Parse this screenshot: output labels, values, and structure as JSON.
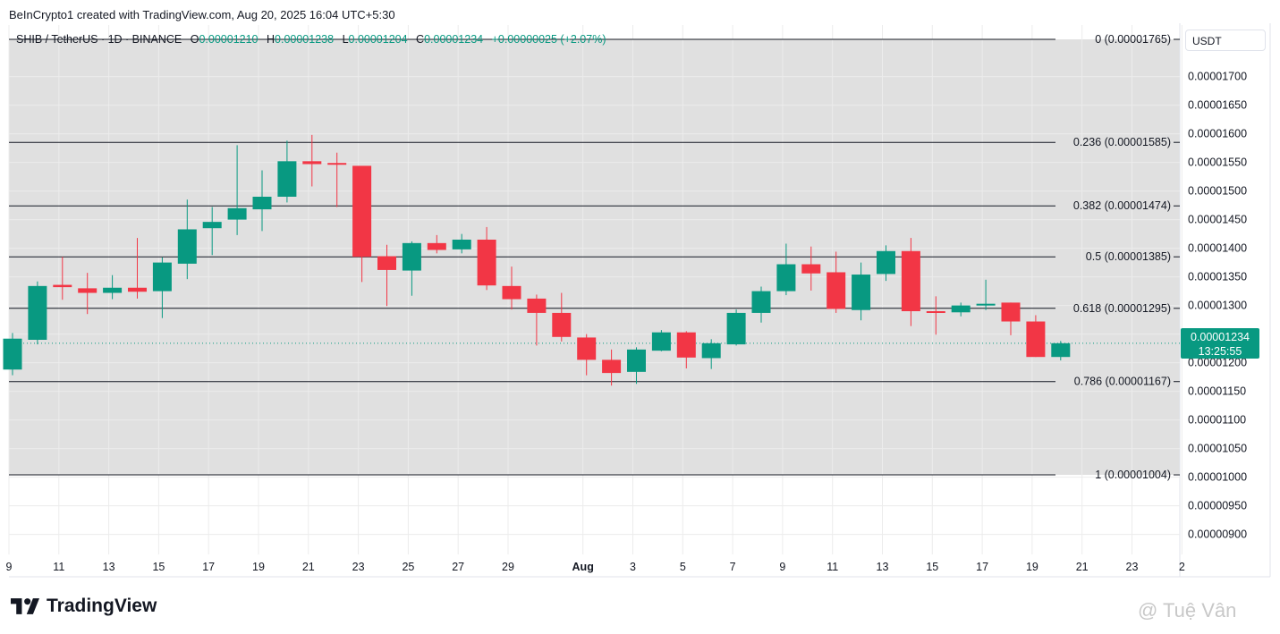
{
  "caption": "BeInCrypto1 created with TradingView.com, Aug 20, 2025 16:04 UTC+5:30",
  "legend": {
    "symbol": "SHIB / TetherUS · 1D · BINANCE",
    "open_label": "O",
    "open": "0.00001210",
    "high_label": "H",
    "high": "0.00001238",
    "low_label": "L",
    "low": "0.00001204",
    "close_label": "C",
    "close": "0.00001234",
    "change": "+0.00000025 (+2.07%)"
  },
  "currency": "USDT",
  "last_price": {
    "price": "0.00001234",
    "countdown": "13:25:55"
  },
  "brand": "TradingView",
  "watermark": "@ Tuệ Vân",
  "colors": {
    "up": "#089981",
    "down": "#f23645",
    "zone": "#e0e0e0",
    "grid": "#ececec"
  },
  "chart_data": {
    "type": "candlestick",
    "ylim": [
      8.65e-06,
      1.79e-05
    ],
    "y_ticks": [
      {
        "value": 1.7e-05,
        "label": "0.00001700"
      },
      {
        "value": 1.65e-05,
        "label": "0.00001650"
      },
      {
        "value": 1.6e-05,
        "label": "0.00001600"
      },
      {
        "value": 1.55e-05,
        "label": "0.00001550"
      },
      {
        "value": 1.5e-05,
        "label": "0.00001500"
      },
      {
        "value": 1.45e-05,
        "label": "0.00001450"
      },
      {
        "value": 1.4e-05,
        "label": "0.00001400"
      },
      {
        "value": 1.35e-05,
        "label": "0.00001350"
      },
      {
        "value": 1.3e-05,
        "label": "0.00001300"
      },
      {
        "value": 1.25e-05,
        "label": "0.00001250"
      },
      {
        "value": 1.2e-05,
        "label": "0.00001200"
      },
      {
        "value": 1.15e-05,
        "label": "0.00001150"
      },
      {
        "value": 1.1e-05,
        "label": "0.00001100"
      },
      {
        "value": 1.05e-05,
        "label": "0.00001050"
      },
      {
        "value": 1e-05,
        "label": "0.00001000"
      },
      {
        "value": 9.5e-06,
        "label": "0.00000950"
      },
      {
        "value": 9e-06,
        "label": "0.00000900"
      }
    ],
    "x_ticks": [
      {
        "index": 0,
        "label": "9"
      },
      {
        "index": 2,
        "label": "11"
      },
      {
        "index": 4,
        "label": "13"
      },
      {
        "index": 6,
        "label": "15"
      },
      {
        "index": 8,
        "label": "17"
      },
      {
        "index": 10,
        "label": "19"
      },
      {
        "index": 12,
        "label": "21"
      },
      {
        "index": 14,
        "label": "23"
      },
      {
        "index": 16,
        "label": "25"
      },
      {
        "index": 18,
        "label": "27"
      },
      {
        "index": 20,
        "label": "29"
      },
      {
        "index": 23,
        "label": "Aug"
      },
      {
        "index": 25,
        "label": "3"
      },
      {
        "index": 27,
        "label": "5"
      },
      {
        "index": 29,
        "label": "7"
      },
      {
        "index": 31,
        "label": "9"
      },
      {
        "index": 33,
        "label": "11"
      },
      {
        "index": 35,
        "label": "13"
      },
      {
        "index": 37,
        "label": "15"
      },
      {
        "index": 39,
        "label": "17"
      },
      {
        "index": 41,
        "label": "19"
      },
      {
        "index": 43,
        "label": "21"
      },
      {
        "index": 45,
        "label": "23"
      },
      {
        "index": 47,
        "label": "2"
      }
    ],
    "fib_levels": [
      {
        "ratio": "0",
        "value": 1.765e-05,
        "label": "0 (0.00001765)"
      },
      {
        "ratio": "0.236",
        "value": 1.585e-05,
        "label": "0.236 (0.00001585)"
      },
      {
        "ratio": "0.382",
        "value": 1.474e-05,
        "label": "0.382 (0.00001474)"
      },
      {
        "ratio": "0.5",
        "value": 1.385e-05,
        "label": "0.5 (0.00001385)"
      },
      {
        "ratio": "0.618",
        "value": 1.295e-05,
        "label": "0.618 (0.00001295)"
      },
      {
        "ratio": "0.786",
        "value": 1.167e-05,
        "label": "0.786 (0.00001167)"
      },
      {
        "ratio": "1",
        "value": 1.004e-05,
        "label": "1 (0.00001004)"
      }
    ],
    "candles": [
      {
        "o": 1.188e-05,
        "h": 1.252e-05,
        "l": 1.178e-05,
        "c": 1.242e-05
      },
      {
        "o": 1.24e-05,
        "h": 1.342e-05,
        "l": 1.232e-05,
        "c": 1.334e-05
      },
      {
        "o": 1.336e-05,
        "h": 1.385e-05,
        "l": 1.31e-05,
        "c": 1.332e-05
      },
      {
        "o": 1.33e-05,
        "h": 1.357e-05,
        "l": 1.285e-05,
        "c": 1.322e-05
      },
      {
        "o": 1.322e-05,
        "h": 1.353e-05,
        "l": 1.311e-05,
        "c": 1.331e-05
      },
      {
        "o": 1.331e-05,
        "h": 1.418e-05,
        "l": 1.312e-05,
        "c": 1.324e-05
      },
      {
        "o": 1.325e-05,
        "h": 1.384e-05,
        "l": 1.278e-05,
        "c": 1.375e-05
      },
      {
        "o": 1.373e-05,
        "h": 1.485e-05,
        "l": 1.346e-05,
        "c": 1.433e-05
      },
      {
        "o": 1.435e-05,
        "h": 1.472e-05,
        "l": 1.388e-05,
        "c": 1.446e-05
      },
      {
        "o": 1.45e-05,
        "h": 1.58e-05,
        "l": 1.423e-05,
        "c": 1.47e-05
      },
      {
        "o": 1.468e-05,
        "h": 1.536e-05,
        "l": 1.43e-05,
        "c": 1.49e-05
      },
      {
        "o": 1.49e-05,
        "h": 1.588e-05,
        "l": 1.48e-05,
        "c": 1.552e-05
      },
      {
        "o": 1.552e-05,
        "h": 1.598e-05,
        "l": 1.508e-05,
        "c": 1.547e-05
      },
      {
        "o": 1.549e-05,
        "h": 1.567e-05,
        "l": 1.472e-05,
        "c": 1.546e-05
      },
      {
        "o": 1.544e-05,
        "h": 1.544e-05,
        "l": 1.341e-05,
        "c": 1.385e-05
      },
      {
        "o": 1.386e-05,
        "h": 1.406e-05,
        "l": 1.299e-05,
        "c": 1.362e-05
      },
      {
        "o": 1.361e-05,
        "h": 1.412e-05,
        "l": 1.317e-05,
        "c": 1.409e-05
      },
      {
        "o": 1.409e-05,
        "h": 1.423e-05,
        "l": 1.391e-05,
        "c": 1.397e-05
      },
      {
        "o": 1.398e-05,
        "h": 1.425e-05,
        "l": 1.391e-05,
        "c": 1.415e-05
      },
      {
        "o": 1.415e-05,
        "h": 1.437e-05,
        "l": 1.327e-05,
        "c": 1.335e-05
      },
      {
        "o": 1.334e-05,
        "h": 1.368e-05,
        "l": 1.293e-05,
        "c": 1.311e-05
      },
      {
        "o": 1.312e-05,
        "h": 1.319e-05,
        "l": 1.23e-05,
        "c": 1.287e-05
      },
      {
        "o": 1.287e-05,
        "h": 1.322e-05,
        "l": 1.237e-05,
        "c": 1.245e-05
      },
      {
        "o": 1.244e-05,
        "h": 1.25e-05,
        "l": 1.178e-05,
        "c": 1.205e-05
      },
      {
        "o": 1.205e-05,
        "h": 1.223e-05,
        "l": 1.16e-05,
        "c": 1.182e-05
      },
      {
        "o": 1.184e-05,
        "h": 1.227e-05,
        "l": 1.163e-05,
        "c": 1.223e-05
      },
      {
        "o": 1.221e-05,
        "h": 1.257e-05,
        "l": 1.22e-05,
        "c": 1.253e-05
      },
      {
        "o": 1.253e-05,
        "h": 1.255e-05,
        "l": 1.19e-05,
        "c": 1.209e-05
      },
      {
        "o": 1.208e-05,
        "h": 1.241e-05,
        "l": 1.189e-05,
        "c": 1.234e-05
      },
      {
        "o": 1.232e-05,
        "h": 1.293e-05,
        "l": 1.23e-05,
        "c": 1.287e-05
      },
      {
        "o": 1.287e-05,
        "h": 1.333e-05,
        "l": 1.27e-05,
        "c": 1.325e-05
      },
      {
        "o": 1.325e-05,
        "h": 1.408e-05,
        "l": 1.318e-05,
        "c": 1.372e-05
      },
      {
        "o": 1.372e-05,
        "h": 1.403e-05,
        "l": 1.326e-05,
        "c": 1.356e-05
      },
      {
        "o": 1.358e-05,
        "h": 1.394e-05,
        "l": 1.287e-05,
        "c": 1.294e-05
      },
      {
        "o": 1.292e-05,
        "h": 1.375e-05,
        "l": 1.274e-05,
        "c": 1.354e-05
      },
      {
        "o": 1.355e-05,
        "h": 1.405e-05,
        "l": 1.343e-05,
        "c": 1.395e-05
      },
      {
        "o": 1.395e-05,
        "h": 1.418e-05,
        "l": 1.264e-05,
        "c": 1.29e-05
      },
      {
        "o": 1.29e-05,
        "h": 1.316e-05,
        "l": 1.249e-05,
        "c": 1.288e-05
      },
      {
        "o": 1.288e-05,
        "h": 1.305e-05,
        "l": 1.281e-05,
        "c": 1.3e-05
      },
      {
        "o": 1.3e-05,
        "h": 1.345e-05,
        "l": 1.292e-05,
        "c": 1.303e-05
      },
      {
        "o": 1.305e-05,
        "h": 1.305e-05,
        "l": 1.248e-05,
        "c": 1.272e-05
      },
      {
        "o": 1.272e-05,
        "h": 1.283e-05,
        "l": 1.21e-05,
        "c": 1.21e-05
      },
      {
        "o": 1.21e-05,
        "h": 1.238e-05,
        "l": 1.204e-05,
        "c": 1.234e-05
      }
    ]
  }
}
